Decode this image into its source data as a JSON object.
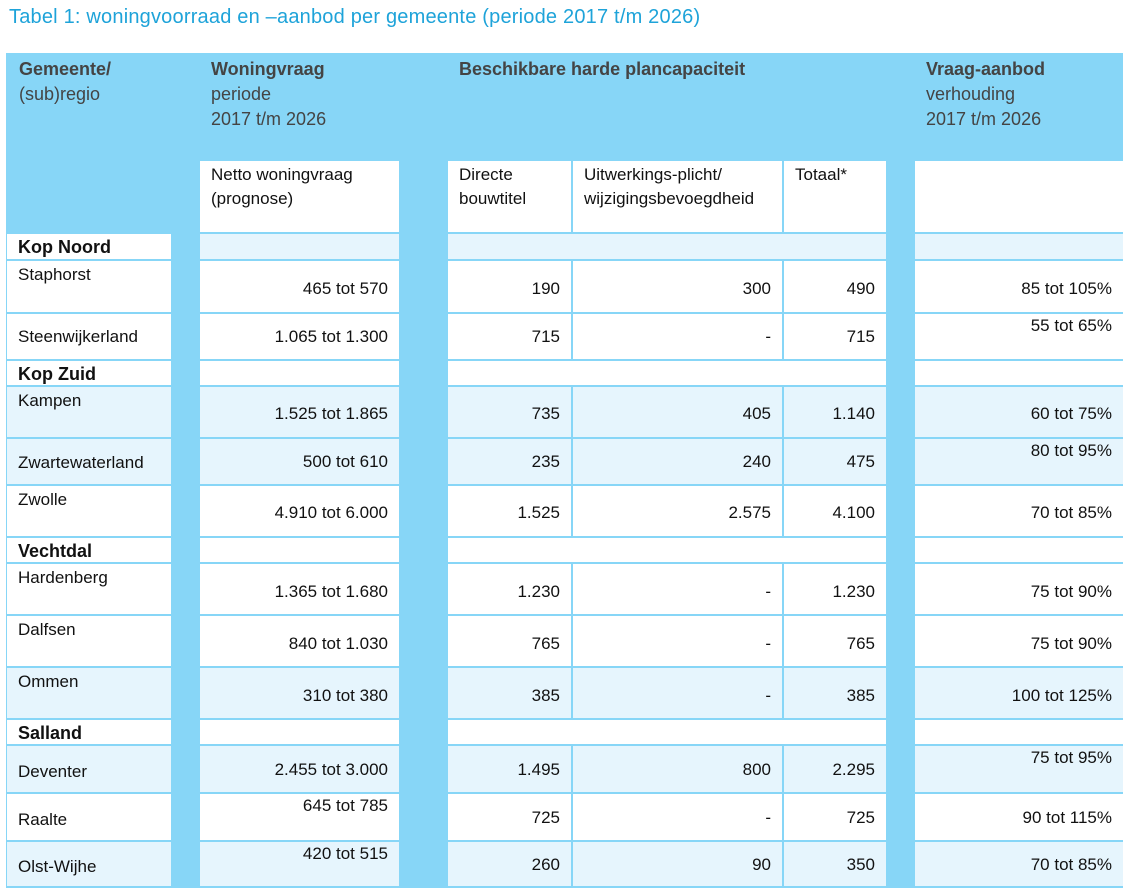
{
  "title": "Tabel 1: woningvoorraad en –aanbod per gemeente (periode 2017 t/m 2026)",
  "header": {
    "gemeente": {
      "line1": "Gemeente/",
      "line2": "(sub)regio"
    },
    "vraag": {
      "line1": "Woningvraag",
      "line2": "periode",
      "line3": "2017 t/m 2026"
    },
    "plancap": {
      "line1": "Beschikbare harde plancapaciteit"
    },
    "verhouding": {
      "line1": "Vraag-aanbod",
      "line2": "verhouding",
      "line3": "2017 t/m 2026"
    }
  },
  "subheader": {
    "netto": {
      "line1": "Netto woningvraag",
      "line2": "(prognose)"
    },
    "directe": {
      "line1": "Directe",
      "line2": "bouwtitel"
    },
    "uitwerking": {
      "line1": "Uitwerkings-plicht/",
      "line2": "wijzigingsbevoegdheid"
    },
    "totaal": "Totaal*"
  },
  "groups": {
    "kop_noord": "Kop Noord",
    "kop_zuid": "Kop Zuid",
    "vechtdal": "Vechtdal",
    "salland": "Salland"
  },
  "rows": [
    {
      "gemeente": "Staphorst",
      "vraag": "465 tot 570",
      "directe": "190",
      "uitwerking": "300",
      "totaal": "490",
      "verhouding": "85 tot 105%"
    },
    {
      "gemeente": "Steenwijkerland",
      "vraag": "1.065 tot 1.300",
      "directe": "715",
      "uitwerking": "-",
      "totaal": "715",
      "verhouding": "55 tot 65%"
    },
    {
      "gemeente": "Kampen",
      "vraag": "1.525 tot 1.865",
      "directe": "735",
      "uitwerking": "405",
      "totaal": "1.140",
      "verhouding": "60 tot 75%"
    },
    {
      "gemeente": "Zwartewaterland",
      "vraag": "500 tot 610",
      "directe": "235",
      "uitwerking": "240",
      "totaal": "475",
      "verhouding": "80 tot 95%"
    },
    {
      "gemeente": "Zwolle",
      "vraag": "4.910 tot 6.000",
      "directe": "1.525",
      "uitwerking": "2.575",
      "totaal": "4.100",
      "verhouding": "70 tot 85%"
    },
    {
      "gemeente": "Hardenberg",
      "vraag": "1.365 tot 1.680",
      "directe": "1.230",
      "uitwerking": "-",
      "totaal": "1.230",
      "verhouding": "75 tot 90%"
    },
    {
      "gemeente": "Dalfsen",
      "vraag": "840 tot 1.030",
      "directe": "765",
      "uitwerking": "-",
      "totaal": "765",
      "verhouding": "75 tot 90%"
    },
    {
      "gemeente": "Ommen",
      "vraag": "310 tot 380",
      "directe": "385",
      "uitwerking": "-",
      "totaal": "385",
      "verhouding": "100 tot 125%"
    },
    {
      "gemeente": "Deventer",
      "vraag": "2.455 tot 3.000",
      "directe": "1.495",
      "uitwerking": "800",
      "totaal": "2.295",
      "verhouding": "75 tot 95%"
    },
    {
      "gemeente": "Raalte",
      "vraag": "645 tot 785",
      "directe": "725",
      "uitwerking": "-",
      "totaal": "725",
      "verhouding": "90 tot 115%"
    },
    {
      "gemeente": "Olst-Wijhe",
      "vraag": "420 tot 515",
      "directe": "260",
      "uitwerking": "90",
      "totaal": "350",
      "verhouding": "70 tot 85%"
    }
  ],
  "colors": {
    "title": "#1ea3d9",
    "frame": "#87d6f7",
    "row_alt": "#e6f5fd",
    "header_text": "#444444"
  }
}
